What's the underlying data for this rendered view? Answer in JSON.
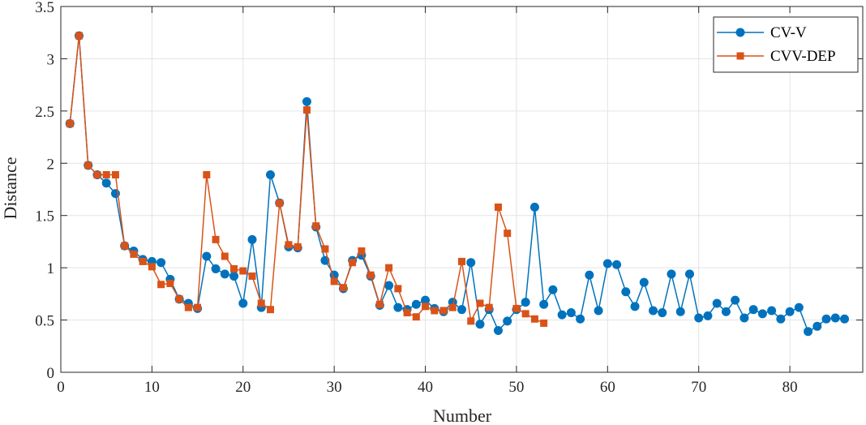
{
  "chart_data": {
    "type": "line",
    "xlabel": "Number",
    "ylabel": "Distance",
    "xlim": [
      0,
      88
    ],
    "ylim": [
      0,
      3.5
    ],
    "x_ticks": [
      0,
      10,
      20,
      30,
      40,
      50,
      60,
      70,
      80
    ],
    "y_ticks": [
      0,
      0.5,
      1,
      1.5,
      2,
      2.5,
      3,
      3.5
    ],
    "x_tick_labels": [
      "0",
      "10",
      "20",
      "30",
      "40",
      "50",
      "60",
      "70",
      "80"
    ],
    "y_tick_labels": [
      "0",
      "0.5",
      "1",
      "1.5",
      "2",
      "2.5",
      "3",
      "3.5"
    ],
    "grid": true,
    "legend_position": "top-right",
    "series": [
      {
        "name": "CV-V",
        "color": "#0072BD",
        "marker": "circle",
        "x": [
          1,
          2,
          3,
          4,
          5,
          6,
          7,
          8,
          9,
          10,
          11,
          12,
          13,
          14,
          15,
          16,
          17,
          18,
          19,
          20,
          21,
          22,
          23,
          24,
          25,
          26,
          27,
          28,
          29,
          30,
          31,
          32,
          33,
          34,
          35,
          36,
          37,
          38,
          39,
          40,
          41,
          42,
          43,
          44,
          45,
          46,
          47,
          48,
          49,
          50,
          51,
          52,
          53,
          54,
          55,
          56,
          57,
          58,
          59,
          60,
          61,
          62,
          63,
          64,
          65,
          66,
          67,
          68,
          69,
          70,
          71,
          72,
          73,
          74,
          75,
          76,
          77,
          78,
          79,
          80,
          81,
          82,
          83,
          84,
          85,
          86
        ],
        "values": [
          2.38,
          3.22,
          1.98,
          1.89,
          1.81,
          1.71,
          1.21,
          1.16,
          1.08,
          1.06,
          1.05,
          0.89,
          0.7,
          0.66,
          0.61,
          1.11,
          0.99,
          0.94,
          0.92,
          0.66,
          1.27,
          0.62,
          1.89,
          1.62,
          1.2,
          1.19,
          2.59,
          1.39,
          1.07,
          0.93,
          0.8,
          1.07,
          1.12,
          0.92,
          0.64,
          0.83,
          0.62,
          0.6,
          0.65,
          0.69,
          0.61,
          0.58,
          0.67,
          0.6,
          1.05,
          0.46,
          0.6,
          0.4,
          0.49,
          0.6,
          0.67,
          1.58,
          0.65,
          0.79,
          0.55,
          0.57,
          0.51,
          0.93,
          0.59,
          1.04,
          1.03,
          0.77,
          0.63,
          0.86,
          0.59,
          0.57,
          0.94,
          0.58,
          0.94,
          0.52,
          0.54,
          0.66,
          0.58,
          0.69,
          0.52,
          0.6,
          0.56,
          0.59,
          0.51,
          0.58,
          0.62,
          0.39,
          0.44,
          0.51,
          0.52,
          0.51
        ]
      },
      {
        "name": "CVV-DEP",
        "color": "#D95319",
        "marker": "square",
        "x": [
          1,
          2,
          3,
          4,
          5,
          6,
          7,
          8,
          9,
          10,
          11,
          12,
          13,
          14,
          15,
          16,
          17,
          18,
          19,
          20,
          21,
          22,
          23,
          24,
          25,
          26,
          27,
          28,
          29,
          30,
          31,
          32,
          33,
          34,
          35,
          36,
          37,
          38,
          39,
          40,
          41,
          42,
          43,
          44,
          45,
          46,
          47,
          48,
          49,
          50,
          51,
          52,
          53
        ],
        "values": [
          2.38,
          3.22,
          1.98,
          1.89,
          1.89,
          1.89,
          1.21,
          1.13,
          1.06,
          1.01,
          0.84,
          0.85,
          0.7,
          0.62,
          0.62,
          1.89,
          1.27,
          1.11,
          0.99,
          0.97,
          0.92,
          0.66,
          0.6,
          1.62,
          1.22,
          1.2,
          2.51,
          1.4,
          1.18,
          0.87,
          0.81,
          1.05,
          1.16,
          0.93,
          0.65,
          1.0,
          0.8,
          0.57,
          0.53,
          0.63,
          0.59,
          0.59,
          0.62,
          1.06,
          0.49,
          0.66,
          0.62,
          1.58,
          1.33,
          0.61,
          0.56,
          0.51,
          0.47
        ]
      }
    ]
  }
}
